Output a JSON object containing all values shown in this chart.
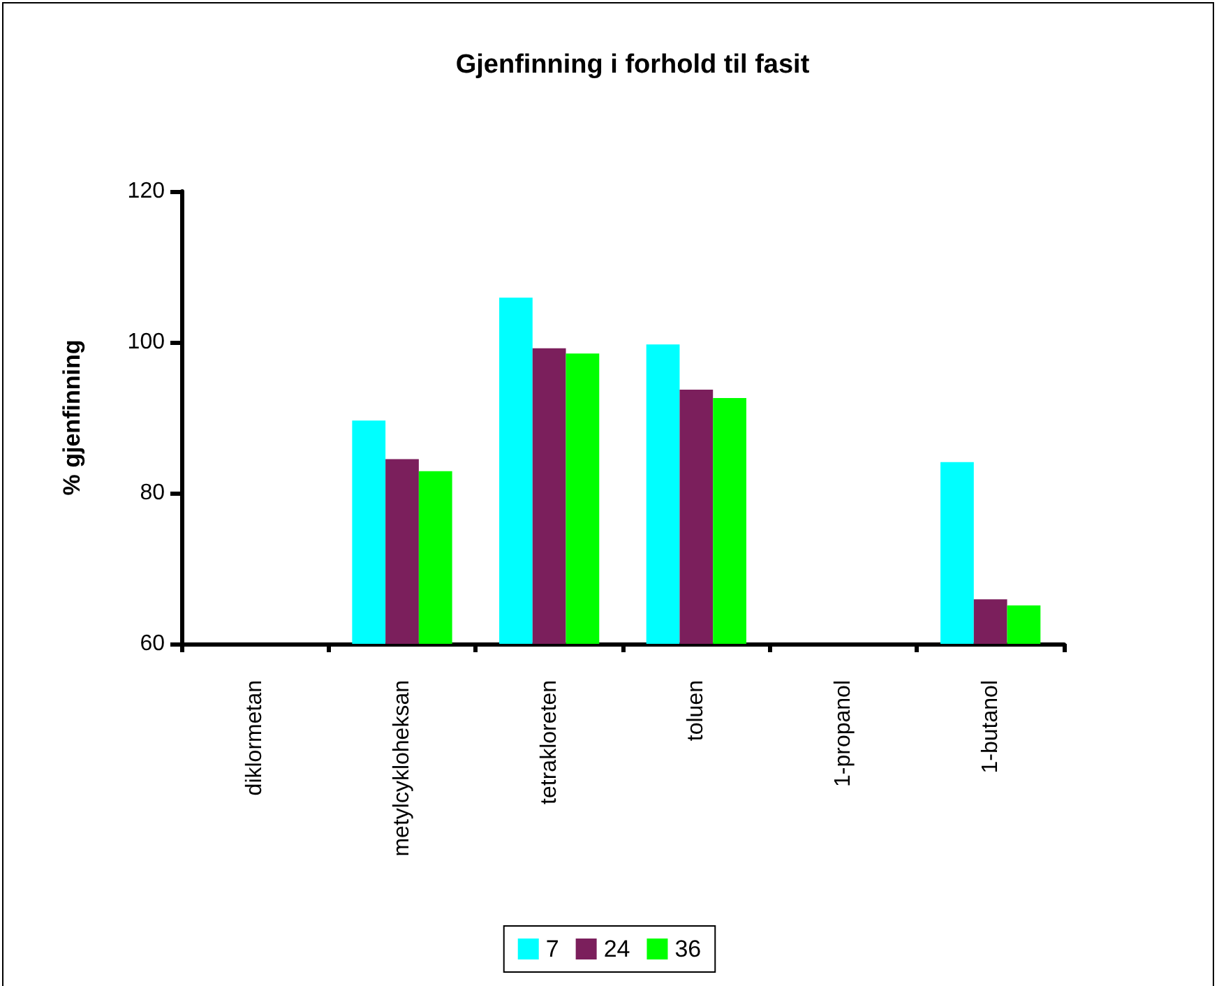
{
  "chart_data": {
    "type": "bar",
    "title": "Gjenfinning i forhold til fasit",
    "ylabel": "% gjenfinning",
    "categories": [
      "diklormetan",
      "metylcykloheksan",
      "tetrakloreten",
      "toluen",
      "1-propanol",
      "1-butanol"
    ],
    "series": [
      {
        "name": "7",
        "color": "#00ffff",
        "values": [
          null,
          89.6,
          105.9,
          99.7,
          null,
          84.1
        ]
      },
      {
        "name": "24",
        "color": "#7b1f5c",
        "values": [
          null,
          84.5,
          99.2,
          93.7,
          null,
          65.9
        ]
      },
      {
        "name": "36",
        "color": "#00ff00",
        "values": [
          null,
          82.9,
          98.5,
          92.6,
          null,
          65.1
        ]
      }
    ],
    "ylim": [
      60,
      120
    ],
    "yticks": [
      60,
      80,
      100,
      120
    ],
    "grid": false,
    "legend": "bottom"
  }
}
